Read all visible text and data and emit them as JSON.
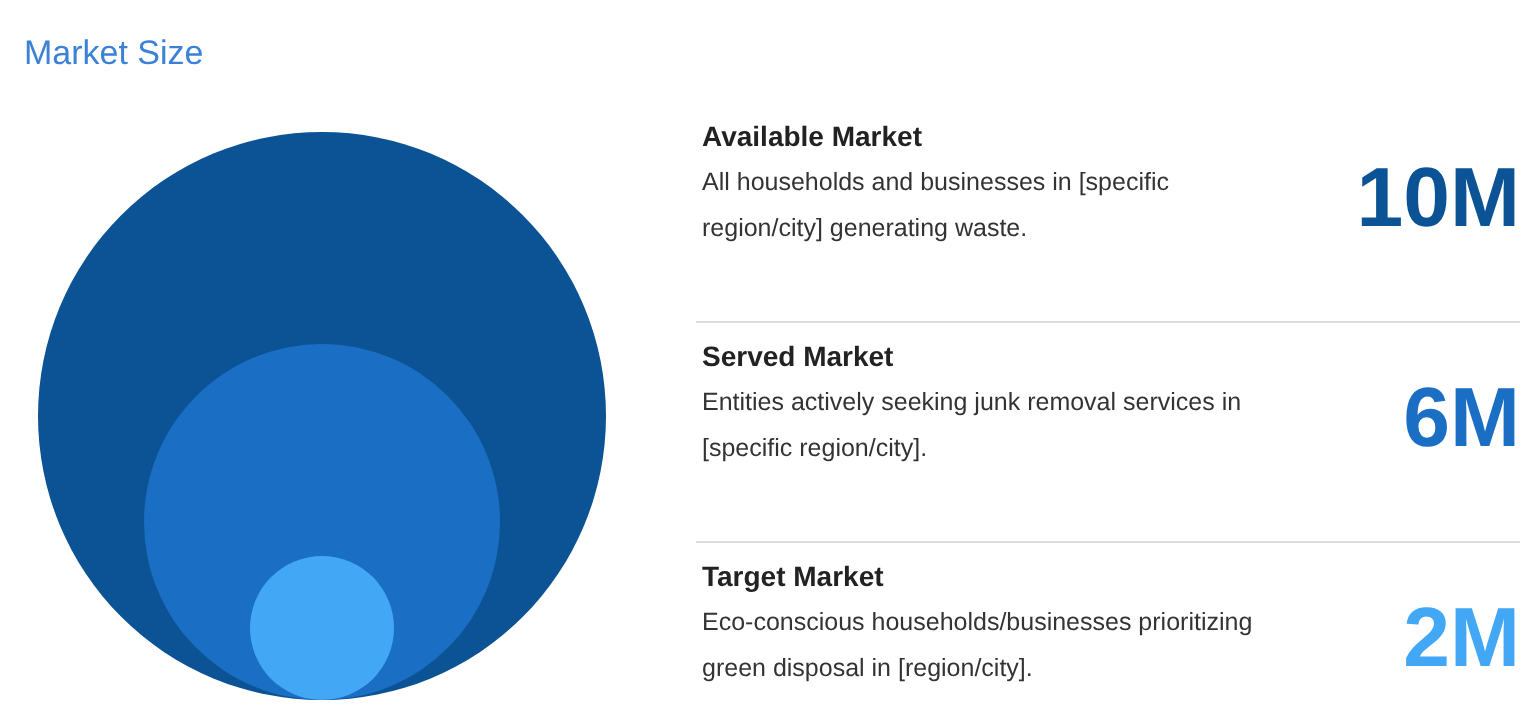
{
  "chart_data": {
    "type": "other",
    "title": "Market Size",
    "categories": [
      "Available Market",
      "Served Market",
      "Target Market"
    ],
    "values": [
      10,
      6,
      2
    ],
    "value_labels": [
      "10M",
      "6M",
      "2M"
    ],
    "colors": [
      "#0b5394",
      "#1a6fc4",
      "#42a8f5"
    ],
    "annotations": [
      "All households and businesses in [specific region/city] generating waste.",
      "Entities actively seeking junk removal services in [specific region/city].",
      "Eco-conscious households/businesses prioritizing green disposal in [region/city]."
    ]
  }
}
